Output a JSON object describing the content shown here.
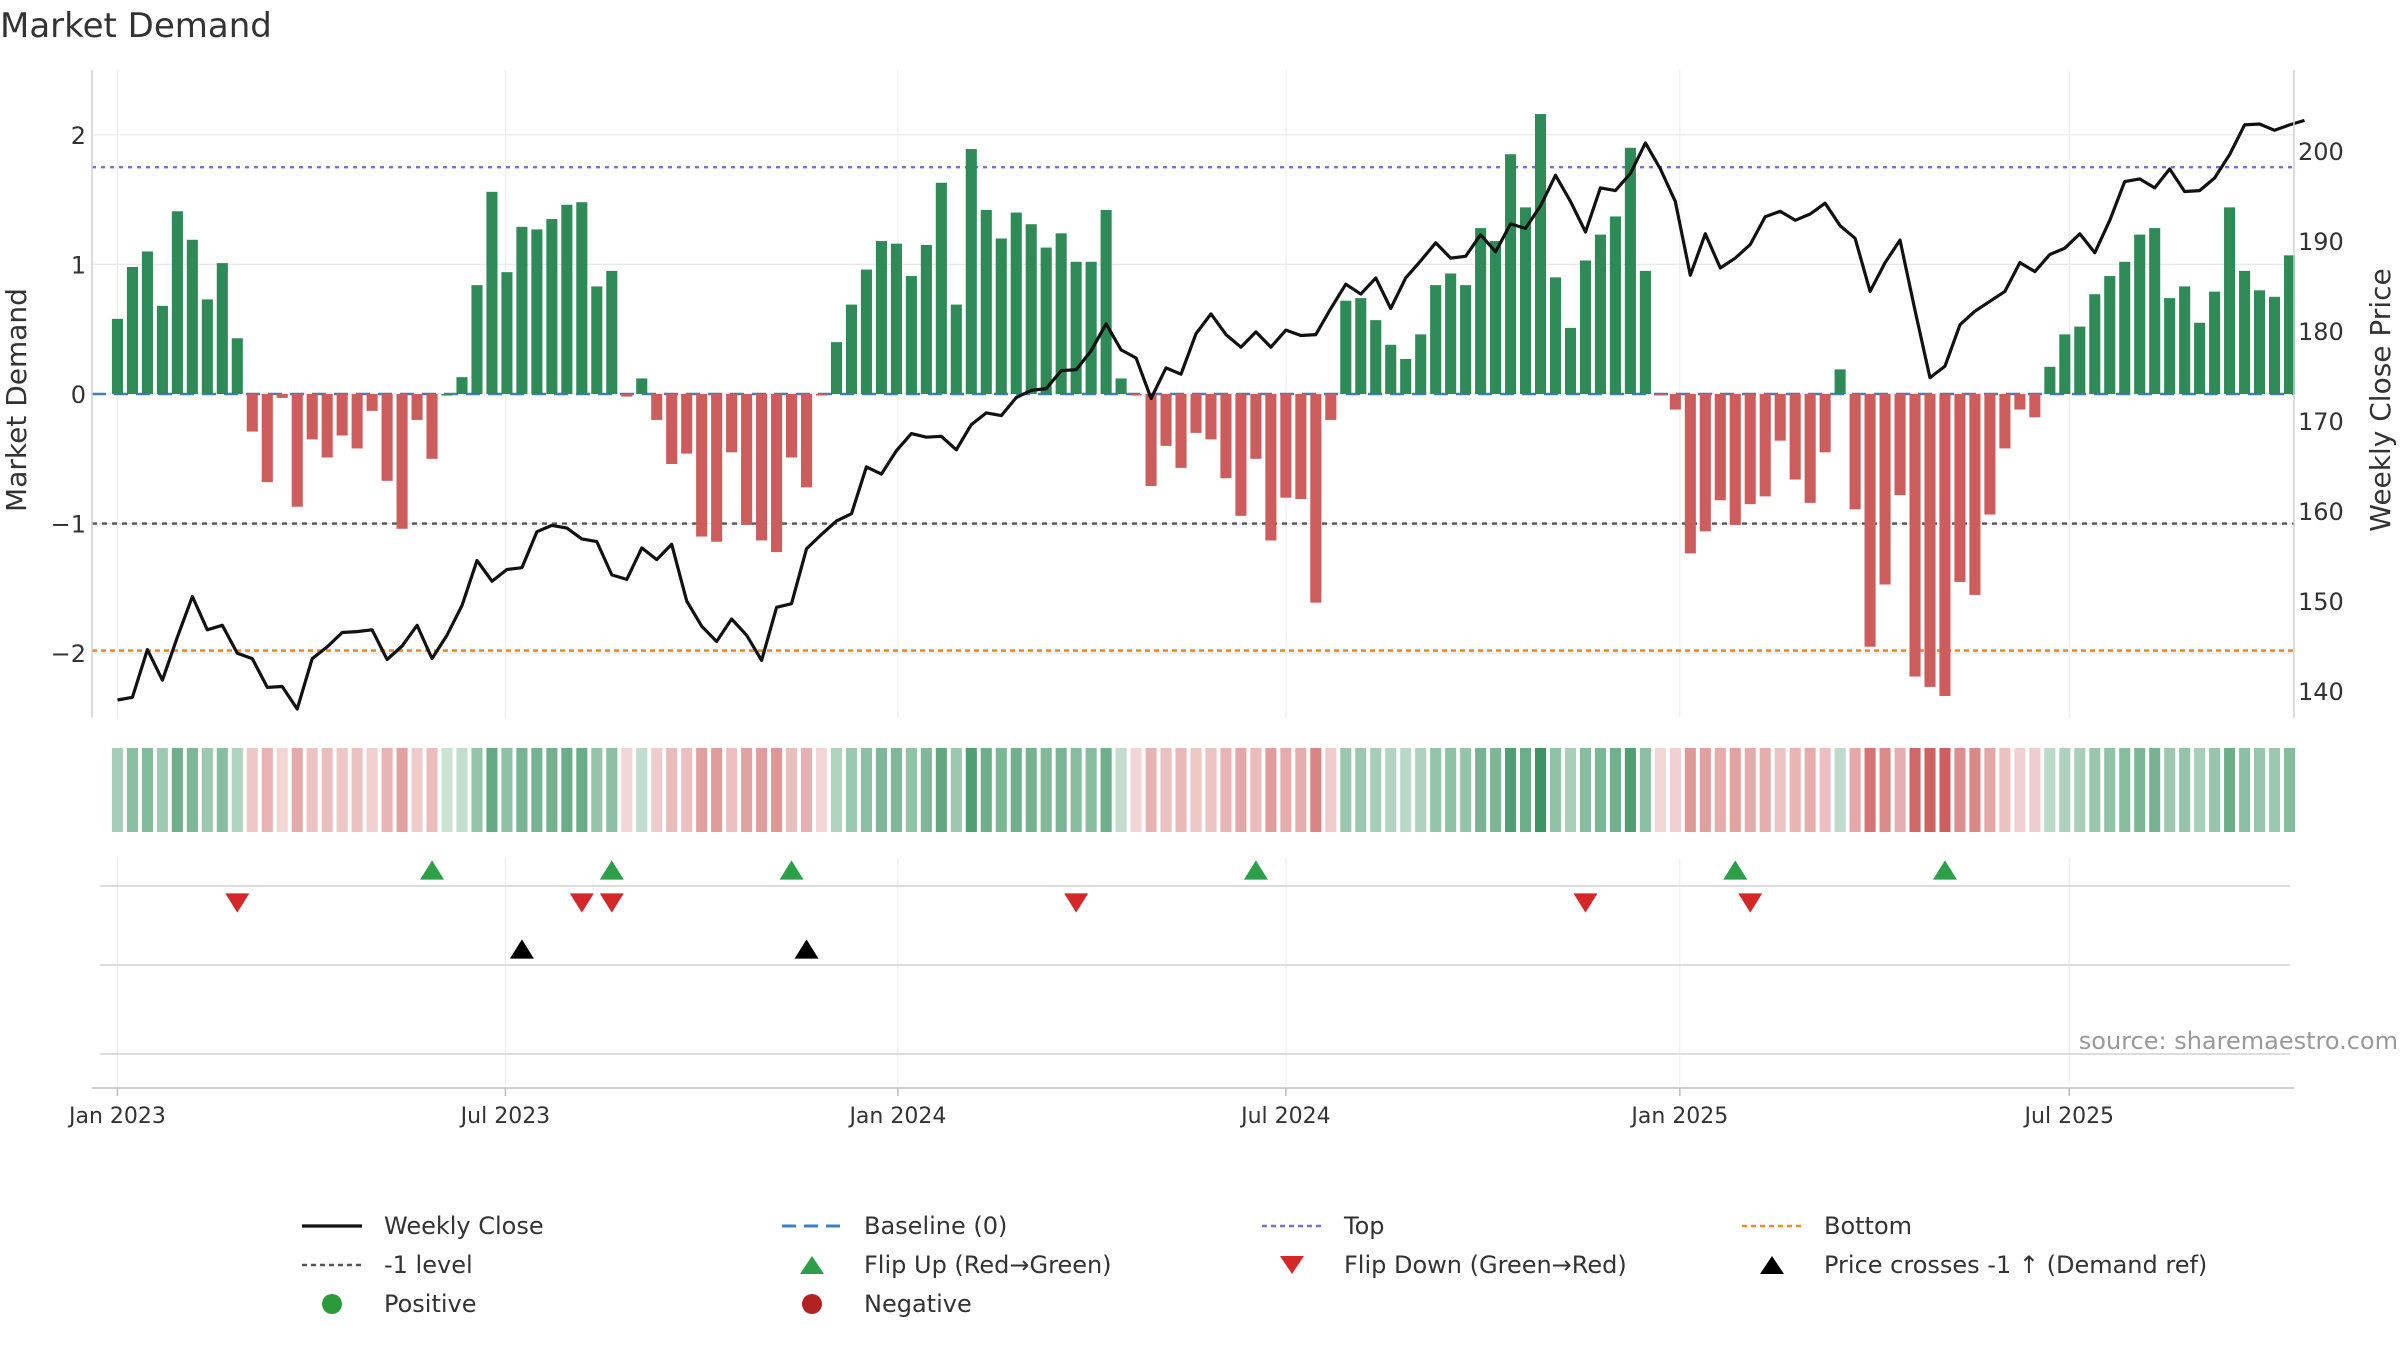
{
  "chart_data": {
    "type": "bar",
    "title": "Market Demand",
    "ylabel_left": "Market Demand",
    "ylabel_right": "Weekly Close Price",
    "source": "source: sharemaestro.com",
    "y_left_range": [
      -2.5,
      2.5
    ],
    "y_left_ticks": [
      "2",
      "1",
      "0",
      "−1",
      "−2"
    ],
    "y_left_tick_values": [
      2,
      1,
      0,
      -1,
      -2
    ],
    "y_right_range": [
      137,
      209
    ],
    "y_right_ticks": [
      "200",
      "190",
      "180",
      "170",
      "160",
      "150",
      "140"
    ],
    "y_right_tick_values": [
      200,
      190,
      180,
      170,
      160,
      150,
      140
    ],
    "x_range": [
      -1.7,
      145.3
    ],
    "x_ticks": [
      "Jan 2023",
      "Jul 2023",
      "Jan 2024",
      "Jul 2024",
      "Jan 2025",
      "Jul 2025"
    ],
    "x_tick_weeks": [
      0,
      25.9,
      52.1,
      78,
      104.3,
      130.3
    ],
    "reference_lines": {
      "top": 1.75,
      "minus_one": -1,
      "bottom": -1.98,
      "baseline": 0
    },
    "demand": [
      0.58,
      0.98,
      1.1,
      0.68,
      1.41,
      1.19,
      0.73,
      1.01,
      0.43,
      -0.29,
      -0.68,
      -0.03,
      -0.87,
      -0.35,
      -0.49,
      -0.32,
      -0.42,
      -0.13,
      -0.67,
      -1.04,
      -0.2,
      -0.5,
      0,
      0.13,
      0.84,
      1.56,
      0.94,
      1.29,
      1.27,
      1.35,
      1.46,
      1.48,
      0.83,
      0.95,
      -0.02,
      0.12,
      -0.2,
      -0.54,
      -0.46,
      -1.1,
      -1.14,
      -0.45,
      -1.01,
      -1.13,
      -1.22,
      -0.49,
      -0.72,
      -0.01,
      0.4,
      0.69,
      0.96,
      1.18,
      1.16,
      0.91,
      1.15,
      1.63,
      0.69,
      1.89,
      1.42,
      1.2,
      1.4,
      1.31,
      1.13,
      1.24,
      1.02,
      1.02,
      1.42,
      0.12,
      -0.01,
      -0.71,
      -0.4,
      -0.57,
      -0.3,
      -0.35,
      -0.65,
      -0.94,
      -0.5,
      -1.13,
      -0.8,
      -0.81,
      -1.61,
      -0.2,
      0.72,
      0.74,
      0.57,
      0.38,
      0.27,
      0.46,
      0.84,
      0.93,
      0.84,
      1.28,
      1.18,
      1.85,
      1.44,
      2.16,
      0.9,
      0.51,
      1.03,
      1.23,
      1.37,
      1.9,
      0.95,
      -0.01,
      -0.12,
      -1.23,
      -1.06,
      -0.82,
      -1.01,
      -0.85,
      -0.79,
      -0.36,
      -0.66,
      -0.84,
      -0.45,
      0.19,
      -0.89,
      -1.95,
      -1.47,
      -0.78,
      -2.18,
      -2.26,
      -2.33,
      -1.45,
      -1.55,
      -0.93,
      -0.42,
      -0.12,
      -0.18,
      0.21,
      0.46,
      0.52,
      0.77,
      0.91,
      1.02,
      1.23,
      1.28,
      0.74,
      0.83,
      0.55,
      0.79,
      1.44,
      0.95,
      0.8,
      0.75,
      1.07
    ],
    "weekly_close": [
      139,
      139.3,
      144.6,
      141.2,
      146,
      150.5,
      146.8,
      147.3,
      144.2,
      143.6,
      140.4,
      140.5,
      138,
      143.6,
      144.9,
      146.5,
      146.6,
      146.8,
      143.5,
      145,
      147.3,
      143.6,
      146.2,
      149.5,
      154.5,
      152.2,
      153.5,
      153.7,
      157.7,
      158.4,
      158.1,
      156.9,
      156.6,
      152.9,
      152.4,
      155.9,
      154.6,
      156.3,
      150,
      147.2,
      145.5,
      148,
      146.2,
      143.4,
      149.3,
      149.7,
      155.8,
      157.4,
      158.9,
      159.7,
      164.9,
      164.1,
      166.7,
      168.6,
      168.2,
      168.3,
      166.8,
      169.6,
      170.9,
      170.6,
      172.6,
      173.4,
      173.6,
      175.6,
      175.7,
      177.8,
      180.8,
      177.9,
      177,
      172.5,
      175.9,
      175.2,
      179.7,
      181.9,
      179.6,
      178.2,
      179.9,
      178.2,
      180.1,
      179.5,
      179.6,
      182.5,
      185.2,
      184.1,
      185.9,
      182.5,
      185.9,
      187.8,
      189.8,
      188.1,
      188.3,
      190.7,
      188.8,
      191.9,
      191.4,
      193.9,
      197.3,
      194.4,
      191,
      195.9,
      195.6,
      197.5,
      200.9,
      198,
      194.4,
      186.2,
      190.8,
      187,
      188.1,
      189.6,
      192.7,
      193.3,
      192.3,
      193,
      194.2,
      191.7,
      190.3,
      184.4,
      187.6,
      190.1,
      182.3,
      174.8,
      176.1,
      180.7,
      182.2,
      183.3,
      184.4,
      187.6,
      186.6,
      188.5,
      189.2,
      190.8,
      188.7,
      192.3,
      196.6,
      196.9,
      195.9,
      198,
      195.5,
      195.6,
      197,
      199.6,
      202.9,
      203,
      202.3,
      202.9,
      203.4
    ],
    "flip_up_weeks": [
      21,
      33,
      45,
      76,
      108,
      122
    ],
    "flip_down_weeks": [
      8,
      31,
      33,
      64,
      98,
      109
    ],
    "price_cross_weeks": [
      27,
      46
    ],
    "legend": [
      {
        "label": "Weekly Close",
        "kind": "line",
        "color": "#111111"
      },
      {
        "label": "Baseline (0)",
        "kind": "dash",
        "color": "#3d7fc1"
      },
      {
        "label": "Top",
        "kind": "dot",
        "color": "#7b6fd0"
      },
      {
        "label": "Bottom",
        "kind": "dot",
        "color": "#f08a24"
      },
      {
        "label": "-1 level",
        "kind": "dot",
        "color": "#555555"
      },
      {
        "label": "Flip Up (Red→Green)",
        "kind": "tri-up",
        "color": "#2ca048"
      },
      {
        "label": "Flip Down (Green→Red)",
        "kind": "tri-down",
        "color": "#d62728"
      },
      {
        "label": "Price crosses -1 ↑ (Demand ref)",
        "kind": "tri-up",
        "color": "#000000"
      },
      {
        "label": "Positive",
        "kind": "circle",
        "color": "#2a9a3b"
      },
      {
        "label": "Negative",
        "kind": "circle",
        "color": "#b22222"
      }
    ],
    "colors": {
      "positive_bar": "#2e8b57",
      "negative_bar": "#cd5c5c",
      "price_line": "#111111",
      "grid": "#e8e8e8",
      "axis": "#d0d0d0"
    }
  }
}
